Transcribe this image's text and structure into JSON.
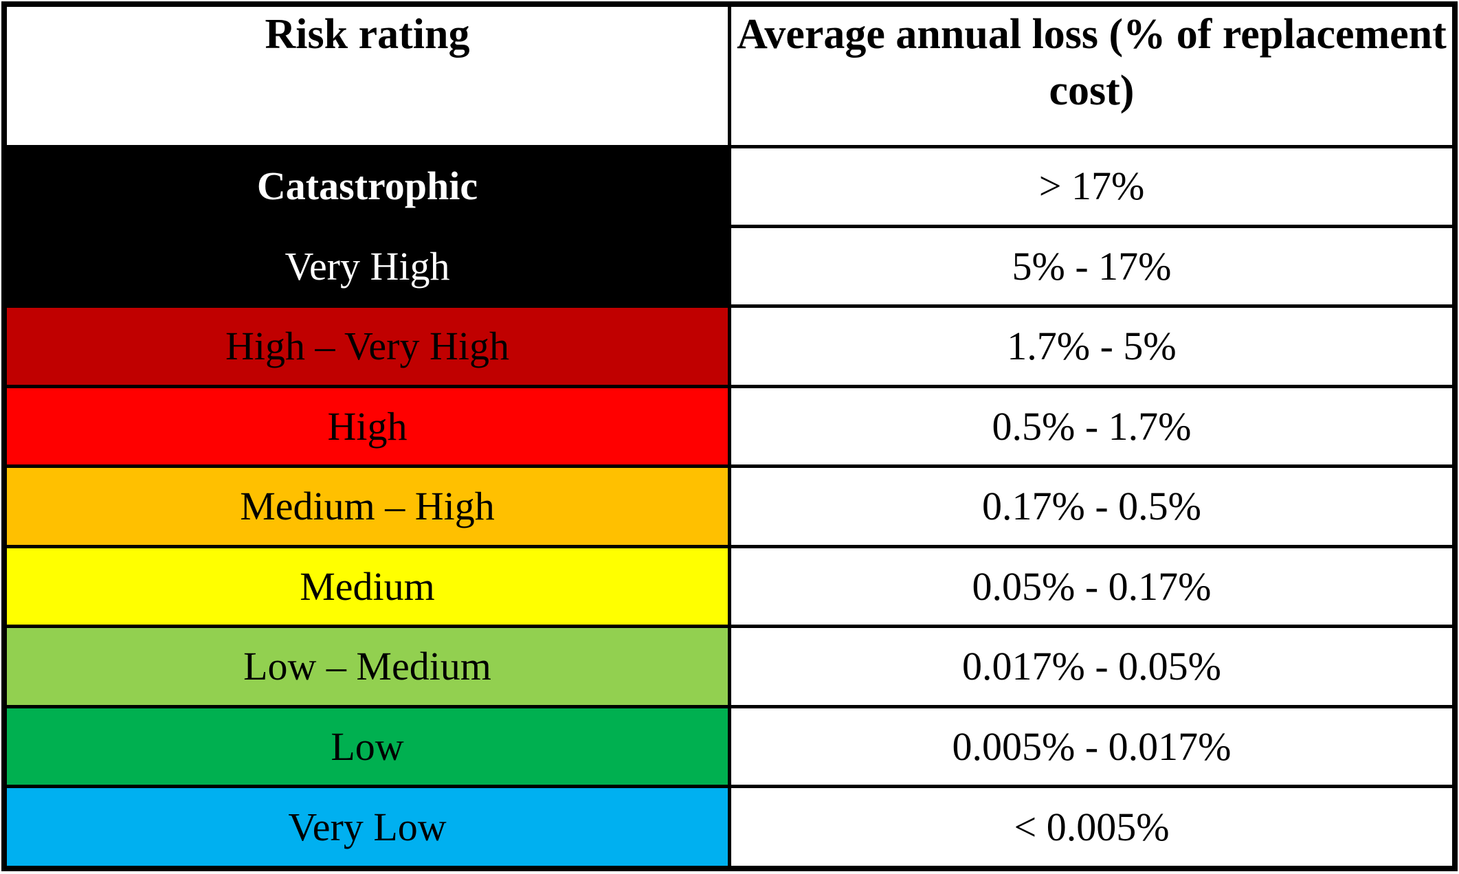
{
  "table": {
    "title_semantic": "Risk rating legend",
    "headers": {
      "rating": "Risk rating",
      "loss": "Average annual loss (% of replacement cost)"
    },
    "rows": [
      {
        "rating": "Catastrophic",
        "loss": "> 17%",
        "bg": "#000000",
        "fg": "#ffffff",
        "bold": true
      },
      {
        "rating": "Very High",
        "loss": "5% - 17%",
        "bg": "#000000",
        "fg": "#ffffff",
        "bold": false
      },
      {
        "rating": "High – Very High",
        "loss": "1.7% - 5%",
        "bg": "#c00000",
        "fg": "#000000",
        "bold": false
      },
      {
        "rating": "High",
        "loss": "0.5% - 1.7%",
        "bg": "#ff0000",
        "fg": "#000000",
        "bold": false
      },
      {
        "rating": "Medium – High",
        "loss": "0.17% - 0.5%",
        "bg": "#ffc000",
        "fg": "#000000",
        "bold": false
      },
      {
        "rating": "Medium",
        "loss": "0.05% - 0.17%",
        "bg": "#ffff00",
        "fg": "#000000",
        "bold": false
      },
      {
        "rating": "Low – Medium",
        "loss": "0.017% - 0.05%",
        "bg": "#92d050",
        "fg": "#000000",
        "bold": false
      },
      {
        "rating": "Low",
        "loss": "0.005% - 0.017%",
        "bg": "#00b050",
        "fg": "#000000",
        "bold": false
      },
      {
        "rating": "Very Low",
        "loss": "< 0.005%",
        "bg": "#00b0f0",
        "fg": "#000000",
        "bold": false
      }
    ],
    "colors": {
      "border": "#000000",
      "header_bg": "#ffffff",
      "catastrophic": "#000000",
      "very_high": "#000000",
      "high_very_high": "#c00000",
      "high": "#ff0000",
      "medium_high": "#ffc000",
      "medium": "#ffff00",
      "low_medium": "#92d050",
      "low": "#00b050",
      "very_low": "#00b0f0"
    }
  },
  "chart_data": {
    "type": "table",
    "title": "Risk rating vs average annual loss (% of replacement cost)",
    "columns": [
      "Risk rating",
      "Average annual loss (% of replacement cost)"
    ],
    "rows": [
      [
        "Catastrophic",
        "> 17%"
      ],
      [
        "Very High",
        "5% - 17%"
      ],
      [
        "High – Very High",
        "1.7% - 5%"
      ],
      [
        "High",
        "0.5% - 1.7%"
      ],
      [
        "Medium – High",
        "0.17% - 0.5%"
      ],
      [
        "Medium",
        "0.05% - 0.17%"
      ],
      [
        "Low – Medium",
        "0.017% - 0.05%"
      ],
      [
        "Low",
        "0.005% - 0.017%"
      ],
      [
        "Very Low",
        "< 0.005%"
      ]
    ],
    "row_colors": [
      "#000000",
      "#000000",
      "#c00000",
      "#ff0000",
      "#ffc000",
      "#ffff00",
      "#92d050",
      "#00b050",
      "#00b0f0"
    ],
    "thresholds_percent": [
      17,
      5,
      1.7,
      0.5,
      0.17,
      0.05,
      0.017,
      0.005
    ]
  }
}
